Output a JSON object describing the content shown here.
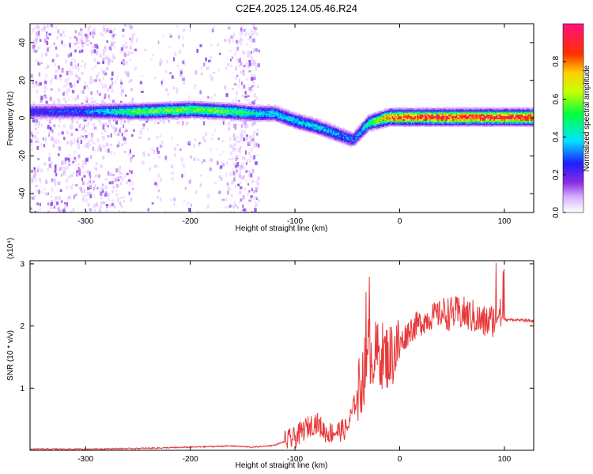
{
  "figure": {
    "title": "C2E4.2025.124.05.46.R24"
  },
  "chart_data": [
    {
      "type": "heatmap",
      "xlabel": "Height of straight line (km)",
      "ylabel": "Frequency (Hz)",
      "xlim": [
        -353,
        128
      ],
      "ylim": [
        -50,
        50
      ],
      "xticks": [
        -300,
        -200,
        -100,
        0,
        100
      ],
      "yticks": [
        -40,
        -20,
        0,
        20,
        40
      ],
      "colorbar": {
        "label": "Normalized spectral amplitude",
        "range": [
          0.0,
          1.0
        ],
        "ticks": [
          0.0,
          0.2,
          0.4,
          0.6,
          0.8
        ],
        "colormap": "rainbow: white-violet-blue-cyan-green-yellow-red-magenta"
      },
      "ridge": {
        "description": "Dominant frequency track vs height",
        "x": [
          -350,
          -300,
          -250,
          -200,
          -160,
          -140,
          -120,
          -100,
          -80,
          -60,
          -45,
          -30,
          -10,
          0,
          50,
          100,
          128
        ],
        "y": [
          4,
          4,
          4,
          5,
          4,
          3,
          3,
          -1,
          -4,
          -8,
          -11,
          -2,
          1,
          1,
          1,
          1,
          1
        ],
        "peak_amplitude": [
          0.25,
          0.3,
          0.55,
          0.6,
          0.55,
          0.45,
          0.4,
          0.4,
          0.4,
          0.35,
          0.3,
          0.5,
          0.85,
          0.9,
          0.95,
          0.95,
          0.95
        ]
      },
      "noise_region_xlim": [
        -353,
        -135
      ]
    },
    {
      "type": "line",
      "xlabel": "Height of straight line (km)",
      "ylabel": "SNR (10 * v/v)",
      "scale_label": "(x10⁴)",
      "xlim": [
        -353,
        128
      ],
      "ylim": [
        0,
        3.05
      ],
      "xticks": [
        -300,
        -200,
        -100,
        0,
        100
      ],
      "yticks": [
        1,
        2,
        3
      ],
      "series": [
        {
          "color": "#e8383a",
          "x": [
            -353,
            -300,
            -250,
            -200,
            -160,
            -140,
            -120,
            -100,
            -90,
            -80,
            -70,
            -60,
            -50,
            -40,
            -30,
            -20,
            -10,
            0,
            10,
            20,
            30,
            40,
            50,
            60,
            70,
            80,
            90,
            95,
            100,
            110,
            128
          ],
          "y": [
            0.02,
            0.02,
            0.03,
            0.05,
            0.07,
            0.05,
            0.08,
            0.2,
            0.35,
            0.45,
            0.28,
            0.3,
            0.35,
            0.9,
            1.5,
            1.55,
            1.5,
            1.7,
            1.95,
            2.05,
            2.15,
            2.2,
            2.2,
            2.2,
            2.15,
            2.05,
            2.1,
            2.2,
            2.1,
            2.1,
            2.08
          ]
        }
      ]
    }
  ]
}
